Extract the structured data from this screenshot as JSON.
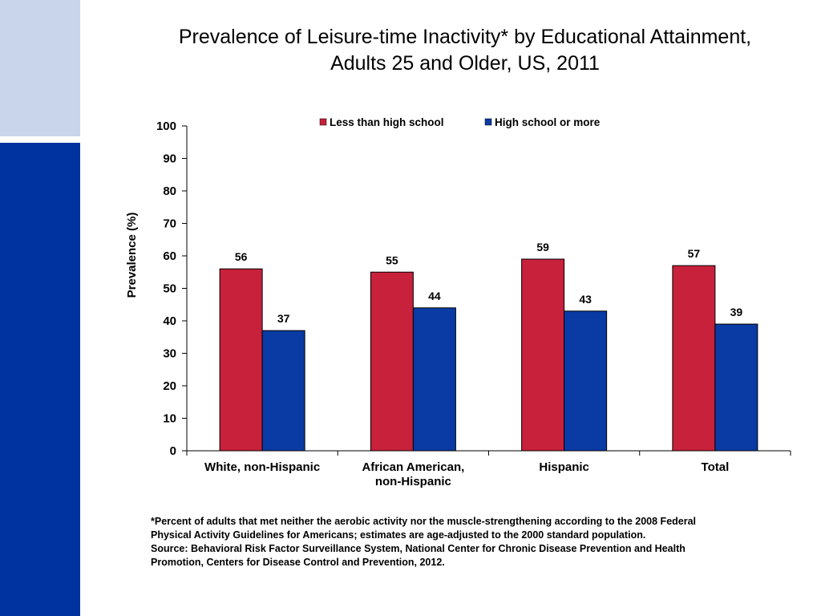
{
  "colors": {
    "sidebar_light": "#c9d5ea",
    "sidebar_dark": "#0033a0",
    "series_less": "#c8213b",
    "series_more": "#0a3aa4"
  },
  "chart_data": {
    "type": "bar",
    "title_lines": [
      "Prevalence of Leisure-time Inactivity* by Educational Attainment,",
      "Adults 25 and Older, US, 2011"
    ],
    "ylabel": "Prevalence (%)",
    "xlabel": "",
    "ylim": [
      0,
      100
    ],
    "yticks": [
      0,
      10,
      20,
      30,
      40,
      50,
      60,
      70,
      80,
      90,
      100
    ],
    "categories": [
      [
        "White, non-Hispanic"
      ],
      [
        "African American,",
        "non-Hispanic"
      ],
      [
        "Hispanic"
      ],
      [
        "Total"
      ]
    ],
    "series": [
      {
        "name": "Less than high school",
        "values": [
          56,
          55,
          59,
          57
        ]
      },
      {
        "name": "High school or more",
        "values": [
          37,
          44,
          43,
          39
        ]
      }
    ],
    "legend_position": "top",
    "grid": false,
    "data_labels": true
  },
  "footnote": {
    "lines": [
      "*Percent of adults that met neither the aerobic activity nor the muscle-strengthening according to  the 2008 Federal",
      "Physical Activity Guidelines for Americans; estimates are age-adjusted to the 2000 standard population.",
      "Source: Behavioral Risk Factor Surveillance System, National Center for Chronic Disease Prevention and Health",
      "Promotion, Centers for Disease Control and Prevention, 2012."
    ]
  }
}
